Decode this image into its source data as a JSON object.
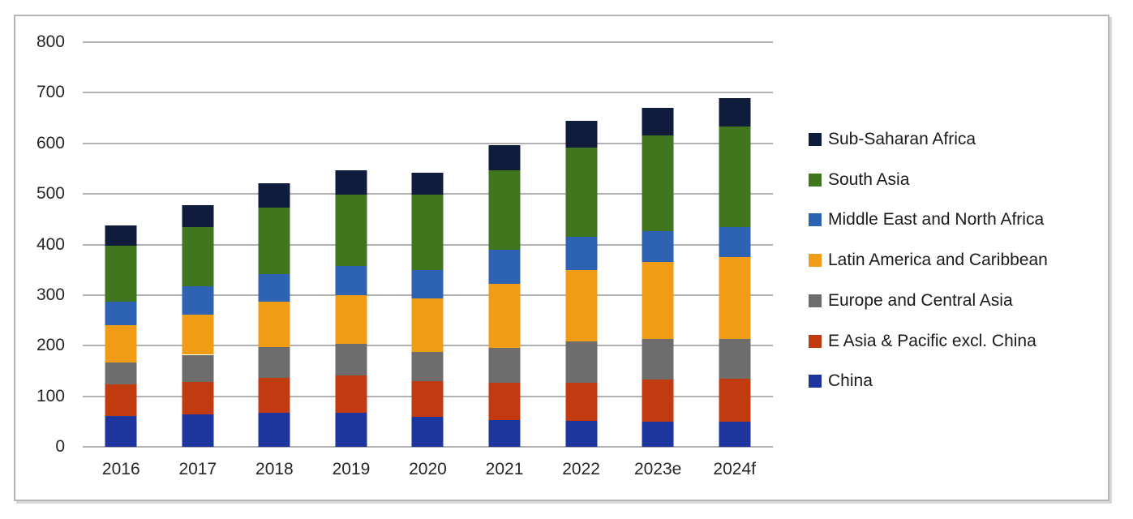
{
  "chart_data": {
    "type": "bar",
    "stacked": true,
    "title": "",
    "xlabel": "",
    "ylabel": "",
    "categories": [
      "2016",
      "2017",
      "2018",
      "2019",
      "2020",
      "2021",
      "2022",
      "2023e",
      "2024f"
    ],
    "series": [
      {
        "name": "China",
        "color": "#1e359e",
        "values": [
          61,
          64,
          68,
          68,
          59,
          53,
          51,
          50,
          49
        ]
      },
      {
        "name": "E Asia & Pacific excl. China",
        "color": "#c23b10",
        "values": [
          62,
          65,
          69,
          73,
          71,
          74,
          76,
          83,
          86
        ]
      },
      {
        "name": "Europe and Central Asia",
        "color": "#6d6d6d",
        "values": [
          43,
          53,
          60,
          63,
          58,
          69,
          81,
          80,
          79
        ]
      },
      {
        "name": "Latin America and Caribbean",
        "color": "#f09c15",
        "values": [
          74,
          80,
          90,
          96,
          105,
          126,
          141,
          153,
          161
        ]
      },
      {
        "name": "Middle East and North Africa",
        "color": "#2e62b2",
        "values": [
          47,
          56,
          54,
          57,
          57,
          68,
          67,
          61,
          60
        ]
      },
      {
        "name": "South Asia",
        "color": "#41761f",
        "values": [
          111,
          117,
          132,
          142,
          148,
          157,
          176,
          189,
          199
        ]
      },
      {
        "name": "Sub-Saharan Africa",
        "color": "#101c3c",
        "values": [
          40,
          42,
          48,
          48,
          44,
          50,
          53,
          54,
          56
        ]
      }
    ],
    "totals": [
      438,
      477,
      521,
      547,
      542,
      597,
      645,
      670,
      690
    ],
    "y_axis": {
      "min": 0,
      "max": 800,
      "step": 100,
      "tick_labels": [
        "0",
        "100",
        "200",
        "300",
        "400",
        "500",
        "600",
        "700",
        "800"
      ]
    },
    "grid": true,
    "legend": {
      "position": "right",
      "order_top_to_bottom": [
        "Sub-Saharan Africa",
        "South Asia",
        "Middle East and North Africa",
        "Latin America and Caribbean",
        "Europe and Central Asia",
        "E Asia & Pacific excl. China",
        "China"
      ]
    },
    "colors": {
      "gridline": "#b1b1b1",
      "frame_border": "#b5b5b5",
      "axis_text": "#262626",
      "legend_text": "#1a1a1a",
      "background": "#ffffff"
    }
  }
}
